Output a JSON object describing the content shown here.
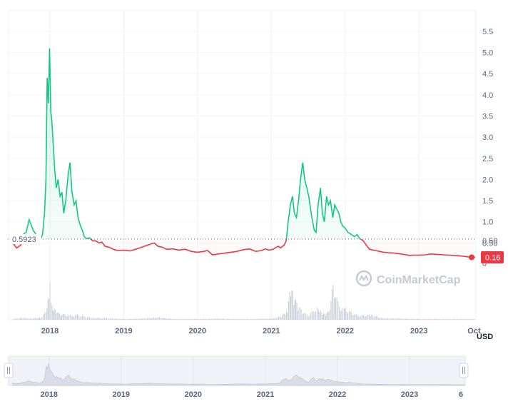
{
  "chart_data": {
    "type": "line",
    "unit": "USD",
    "x_ticks": [
      "2018",
      "2019",
      "2020",
      "2021",
      "2022",
      "2023",
      "Oct"
    ],
    "navigator_ticks": [
      "2018",
      "2019",
      "2020",
      "2021",
      "2022",
      "2023",
      "6"
    ],
    "price_ticks_upper": [
      "5.5",
      "5.0",
      "4.5",
      "4.0",
      "3.5",
      "3.0",
      "2.5",
      "2.0",
      "1.5",
      "1.0",
      "0.50"
    ],
    "price_ticks_lower": [
      "0.50",
      "0"
    ],
    "reference_price": "0.5923",
    "current_price": "0.16",
    "watermark": "CoinMarketCap",
    "colors": {
      "up": "#16c784",
      "down": "#ea3943",
      "volume": "#c7cdd7",
      "grid": "#eff2f5"
    },
    "series": [
      {
        "values_note": "price",
        "x": [
          "2017-07-01",
          "2017-07-20",
          "2017-08-10",
          "2017-08-20",
          "2017-09-05",
          "2017-09-20",
          "2017-10-10",
          "2017-10-25",
          "2017-11-10",
          "2017-11-25",
          "2017-12-05",
          "2017-12-12",
          "2017-12-18",
          "2017-12-24",
          "2017-12-30",
          "2018-01-05",
          "2018-01-10",
          "2018-01-15",
          "2018-01-20",
          "2018-01-25",
          "2018-02-01",
          "2018-02-10",
          "2018-02-20",
          "2018-03-01",
          "2018-03-10",
          "2018-03-20",
          "2018-04-01",
          "2018-04-10",
          "2018-04-20",
          "2018-05-01",
          "2018-05-10",
          "2018-05-20",
          "2018-06-01",
          "2018-06-10",
          "2018-06-20",
          "2018-07-01",
          "2018-07-15",
          "2018-08-01",
          "2018-08-15",
          "2018-09-01",
          "2018-09-15",
          "2018-10-01",
          "2018-10-20",
          "2018-11-10",
          "2018-12-01",
          "2019-01-01",
          "2019-02-01",
          "2019-03-01",
          "2019-04-01",
          "2019-05-01",
          "2019-06-01",
          "2019-06-20",
          "2019-07-10",
          "2019-08-01",
          "2019-09-01",
          "2019-10-01",
          "2019-11-01",
          "2019-12-01",
          "2020-01-01",
          "2020-02-01",
          "2020-02-20",
          "2020-03-15",
          "2020-04-15",
          "2020-05-15",
          "2020-06-15",
          "2020-07-15",
          "2020-08-15",
          "2020-09-15",
          "2020-10-15",
          "2020-11-15",
          "2020-12-01",
          "2020-12-20",
          "2021-01-10",
          "2021-01-25",
          "2021-02-05",
          "2021-02-15",
          "2021-02-25",
          "2021-03-05",
          "2021-03-15",
          "2021-03-25",
          "2021-04-05",
          "2021-04-15",
          "2021-04-25",
          "2021-05-05",
          "2021-05-15",
          "2021-05-25",
          "2021-06-05",
          "2021-06-15",
          "2021-06-25",
          "2021-07-05",
          "2021-07-20",
          "2021-08-01",
          "2021-08-10",
          "2021-08-20",
          "2021-09-01",
          "2021-09-10",
          "2021-09-20",
          "2021-10-01",
          "2021-10-10",
          "2021-10-20",
          "2021-11-01",
          "2021-11-10",
          "2021-11-20",
          "2021-12-01",
          "2021-12-10",
          "2021-12-20",
          "2022-01-01",
          "2022-01-15",
          "2022-02-01",
          "2022-02-15",
          "2022-03-01",
          "2022-03-15",
          "2022-04-01",
          "2022-04-15",
          "2022-05-01",
          "2022-05-10",
          "2022-05-20",
          "2022-06-01",
          "2022-06-20",
          "2022-07-10",
          "2022-08-01",
          "2022-09-01",
          "2022-10-01",
          "2022-11-01",
          "2022-11-15",
          "2022-12-01",
          "2023-01-01",
          "2023-02-01",
          "2023-03-01",
          "2023-04-01",
          "2023-05-01",
          "2023-06-01",
          "2023-07-01",
          "2023-08-01",
          "2023-09-01",
          "2023-10-06"
        ],
        "values": [
          0.5,
          0.38,
          0.45,
          0.7,
          0.75,
          1.05,
          0.8,
          0.7,
          0.5,
          0.7,
          1.2,
          2.0,
          4.4,
          3.8,
          5.1,
          3.6,
          3.4,
          3.0,
          2.6,
          2.2,
          1.8,
          2.0,
          1.6,
          1.7,
          1.2,
          1.5,
          2.1,
          2.4,
          1.7,
          1.4,
          1.5,
          1.1,
          0.9,
          0.8,
          0.65,
          0.6,
          0.62,
          0.55,
          0.55,
          0.5,
          0.52,
          0.42,
          0.4,
          0.35,
          0.32,
          0.33,
          0.31,
          0.35,
          0.4,
          0.45,
          0.5,
          0.42,
          0.4,
          0.35,
          0.36,
          0.33,
          0.35,
          0.3,
          0.28,
          0.3,
          0.32,
          0.22,
          0.24,
          0.26,
          0.28,
          0.3,
          0.34,
          0.36,
          0.3,
          0.32,
          0.36,
          0.33,
          0.35,
          0.4,
          0.42,
          0.38,
          0.42,
          0.45,
          0.55,
          1.0,
          1.4,
          1.6,
          1.2,
          1.1,
          1.5,
          2.0,
          2.4,
          2.0,
          1.8,
          1.6,
          1.1,
          0.8,
          0.75,
          1.4,
          1.8,
          1.2,
          1.0,
          1.6,
          1.4,
          1.5,
          1.1,
          1.4,
          1.3,
          1.2,
          1.0,
          0.9,
          0.85,
          0.75,
          0.7,
          0.65,
          0.7,
          0.6,
          0.55,
          0.45,
          0.35,
          0.34,
          0.33,
          0.32,
          0.3,
          0.28,
          0.27,
          0.26,
          0.24,
          0.22,
          0.2,
          0.21,
          0.21,
          0.22,
          0.24,
          0.23,
          0.22,
          0.21,
          0.2,
          0.19,
          0.17,
          0.16
        ]
      },
      {
        "values_note": "volume (relative)",
        "x": [
          "2017-07-01",
          "2017-08-15",
          "2017-10-01",
          "2017-11-15",
          "2017-12-10",
          "2017-12-20",
          "2017-12-30",
          "2018-01-10",
          "2018-01-25",
          "2018-02-15",
          "2018-03-15",
          "2018-04-15",
          "2018-05-15",
          "2018-06-15",
          "2018-08-01",
          "2018-10-01",
          "2019-01-01",
          "2019-04-01",
          "2019-06-20",
          "2019-09-01",
          "2020-01-01",
          "2020-04-01",
          "2020-07-01",
          "2020-10-01",
          "2021-01-01",
          "2021-02-15",
          "2021-03-20",
          "2021-04-05",
          "2021-04-20",
          "2021-05-10",
          "2021-06-01",
          "2021-07-01",
          "2021-08-01",
          "2021-08-20",
          "2021-09-05",
          "2021-09-20",
          "2021-10-10",
          "2021-11-01",
          "2021-12-01",
          "2022-01-01",
          "2022-03-01",
          "2022-05-10",
          "2022-07-01",
          "2022-10-01",
          "2023-01-01",
          "2023-04-01",
          "2023-07-01",
          "2023-10-06"
        ],
        "values": [
          0.02,
          0.05,
          0.03,
          0.06,
          0.2,
          0.55,
          1.0,
          0.35,
          0.25,
          0.15,
          0.12,
          0.1,
          0.12,
          0.08,
          0.05,
          0.04,
          0.02,
          0.03,
          0.06,
          0.02,
          0.02,
          0.03,
          0.02,
          0.02,
          0.03,
          0.08,
          0.25,
          0.8,
          0.55,
          0.35,
          0.2,
          0.1,
          0.25,
          0.3,
          0.2,
          0.15,
          0.2,
          0.85,
          0.3,
          0.25,
          0.1,
          0.12,
          0.04,
          0.03,
          0.02,
          0.02,
          0.02,
          0.02
        ]
      }
    ],
    "x_range": [
      "2017-06-10",
      "2023-10-10"
    ],
    "ylim": [
      0,
      5.7
    ],
    "grid": true
  }
}
